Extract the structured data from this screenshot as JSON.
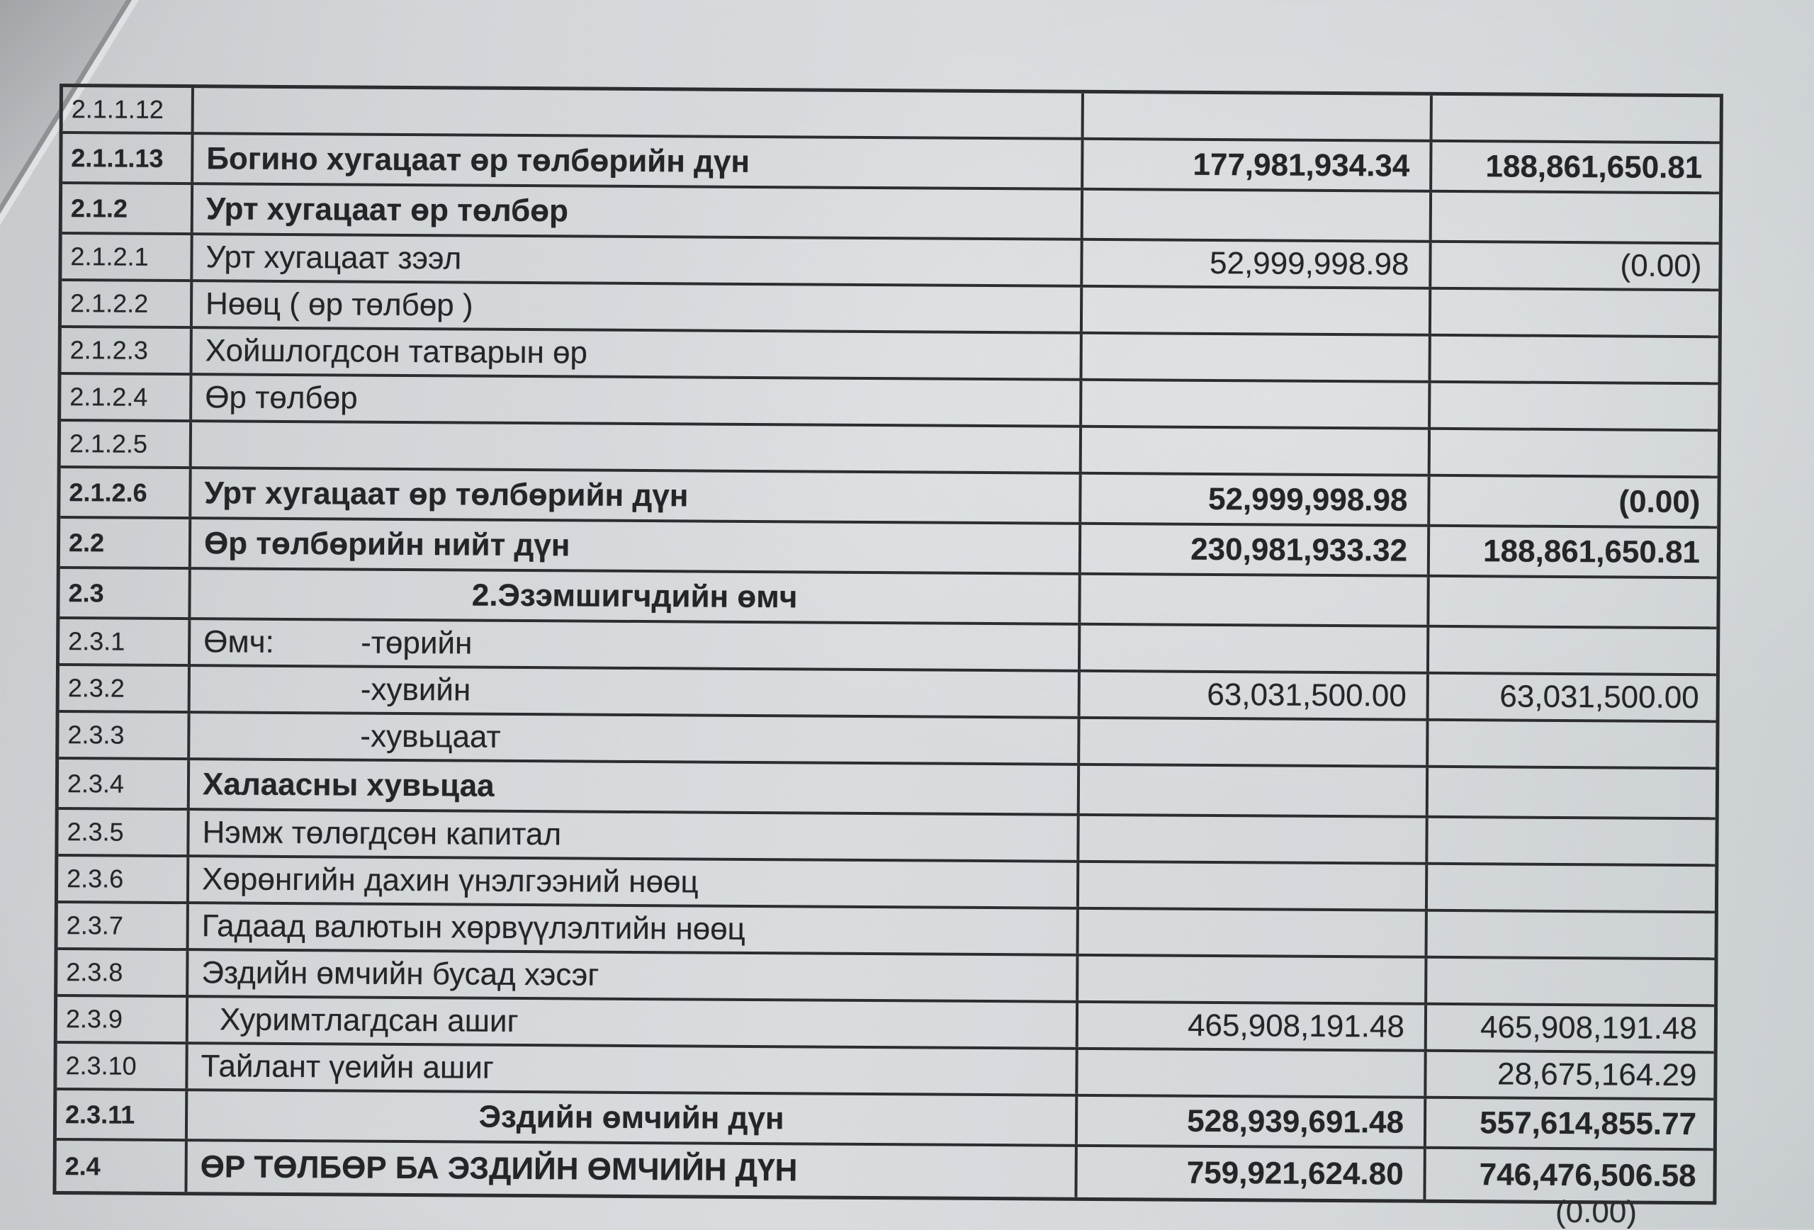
{
  "page": {
    "paper_color": "#d5d9db",
    "ink_color": "#232528",
    "grid_color": "#2b2d30"
  },
  "table": {
    "rows": [
      {
        "code": "2.1.1.12"
      },
      {
        "code": "2.1.1.13",
        "code_bold": true,
        "desc": "Богино хугацаат өр төлбөрийн дүн",
        "desc_bold": true,
        "v1": "177,981,934.34",
        "v2": "188,861,650.81",
        "val_bold": true
      },
      {
        "code": "2.1.2",
        "code_bold": true,
        "desc": "Урт хугацаат өр төлбөр",
        "desc_bold": true
      },
      {
        "code": "2.1.2.1",
        "desc": "Урт хугацаат зээл",
        "v1": "52,999,998.98",
        "v2": "(0.00)"
      },
      {
        "code": "2.1.2.2",
        "desc": "Нөөц ( өр төлбөр )"
      },
      {
        "code": "2.1.2.3",
        "desc": "Хойшлогдсон татварын өр"
      },
      {
        "code": "2.1.2.4",
        "desc": "Өр төлбөр"
      },
      {
        "code": "2.1.2.5"
      },
      {
        "code": "2.1.2.6",
        "code_bold": true,
        "desc": "Урт хугацаат өр төлбөрийн дүн",
        "desc_bold": true,
        "v1": "52,999,998.98",
        "v2": "(0.00)",
        "val_bold": true
      },
      {
        "code": "2.2",
        "code_bold": true,
        "desc": "Өр төлбөрийн нийт дүн",
        "desc_bold": true,
        "v1": "230,981,933.32",
        "v2": "188,861,650.81",
        "val_bold": true
      },
      {
        "code": "2.3",
        "code_bold": true,
        "desc": "2.Эзэмшигчдийн өмч",
        "desc_bold": true,
        "center": true
      },
      {
        "code": "2.3.1",
        "prefix": "Өмч:",
        "desc": "-төрийн"
      },
      {
        "code": "2.3.2",
        "desc": "-хувийн",
        "indent": true,
        "v1": "63,031,500.00",
        "v2": "63,031,500.00"
      },
      {
        "code": "2.3.3",
        "desc": "-хувьцаат",
        "indent": true
      },
      {
        "code": "2.3.4",
        "desc": "Халаасны хувьцаа",
        "desc_bold": true
      },
      {
        "code": "2.3.5",
        "desc": "Нэмж төлөгдсөн капитал"
      },
      {
        "code": "2.3.6",
        "desc": "Хөрөнгийн дахин үнэлгээний нөөц"
      },
      {
        "code": "2.3.7",
        "desc": "Гадаад валютын хөрвүүлэлтийн нөөц"
      },
      {
        "code": "2.3.8",
        "desc": "Эздийн өмчийн бусад хэсэг"
      },
      {
        "code": "2.3.9",
        "desc": "Хуримтлагдсан ашиг",
        "indent_small": true,
        "v1": "465,908,191.48",
        "v2": "465,908,191.48"
      },
      {
        "code": "2.3.10",
        "desc": "Тайлант үеийн ашиг",
        "v2": "28,675,164.29"
      },
      {
        "code": "2.3.11",
        "code_bold": true,
        "desc": "Эздийн өмчийн дүн",
        "desc_bold": true,
        "center": true,
        "v1": "528,939,691.48",
        "v2": "557,614,855.77",
        "val_bold": true
      },
      {
        "code": "2.4",
        "code_bold": true,
        "desc": "ӨР ТӨЛБӨР БА ЭЗДИЙН ӨМЧИЙН ДҮН",
        "desc_bold": true,
        "v1": "759,921,624.80",
        "v2": "746,476,506.58",
        "val_bold": true
      }
    ]
  },
  "footer": {
    "overflow_value": "(0.00)"
  }
}
